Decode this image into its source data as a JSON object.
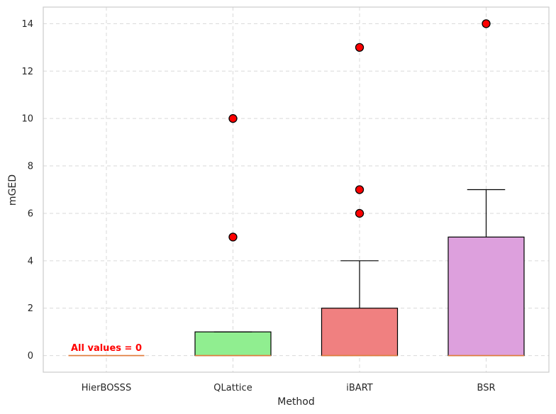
{
  "chart_data": {
    "type": "box",
    "xlabel": "Method",
    "ylabel": "mGED",
    "ylim": [
      -0.7,
      14.7
    ],
    "yticks": [
      0,
      2,
      4,
      6,
      8,
      10,
      12,
      14
    ],
    "grid": true,
    "categories": [
      "HierBOSSS",
      "QLattice",
      "iBART",
      "BSR"
    ],
    "boxes": [
      {
        "name": "HierBOSSS",
        "q1": 0,
        "median": 0,
        "q3": 0,
        "whisker_low": 0,
        "whisker_high": 0,
        "outliers": [],
        "color": "#f08080"
      },
      {
        "name": "QLattice",
        "q1": 0,
        "median": 0,
        "q3": 1,
        "whisker_low": 0,
        "whisker_high": 1,
        "outliers": [
          5,
          10
        ],
        "color": "#90ee90"
      },
      {
        "name": "iBART",
        "q1": 0,
        "median": 0,
        "q3": 2,
        "whisker_low": 0,
        "whisker_high": 4,
        "outliers": [
          6,
          7,
          13
        ],
        "color": "#f08080"
      },
      {
        "name": "BSR",
        "q1": 0,
        "median": 0,
        "q3": 5,
        "whisker_low": 0,
        "whisker_high": 7,
        "outliers": [
          14
        ],
        "color": "#dda0dd"
      }
    ],
    "annotations": [
      {
        "text": "All values = 0",
        "category": "HierBOSSS",
        "y": 0.25,
        "color": "#ff0000"
      }
    ],
    "colors": {
      "median": "#e07b39",
      "outlier_fill": "#ff0000",
      "outlier_edge": "#000000",
      "grid": "#d9d9d9",
      "frame": "#cccccc"
    }
  }
}
